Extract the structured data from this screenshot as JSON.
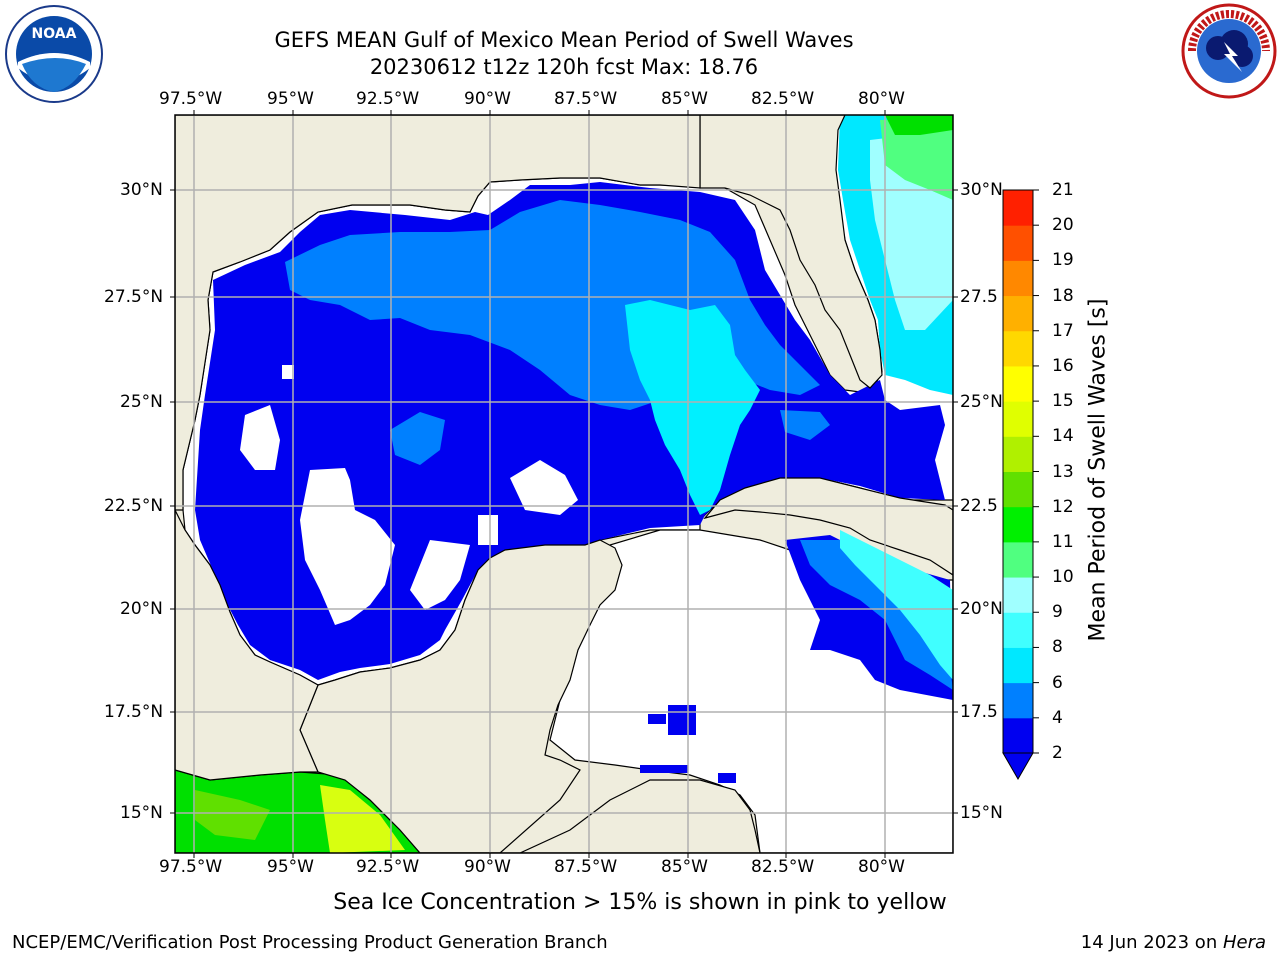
{
  "header": {
    "title_line1": "GEFS MEAN Gulf of Mexico Mean Period of Swell Waves",
    "title_line2": "20230612 t12z 120h fcst   Max: 18.76"
  },
  "logos": {
    "left": "NOAA",
    "right_ring": "NATIONAL WEATHER SERVICE"
  },
  "map": {
    "lon_labels": [
      "97.5°W",
      "95°W",
      "92.5°W",
      "90°W",
      "87.5°W",
      "85°W",
      "82.5°W",
      "80°W"
    ],
    "lat_labels_left": [
      "30°N",
      "27.5°N",
      "25°N",
      "22.5°N",
      "20°N",
      "17.5°N",
      "15°N"
    ],
    "lat_labels_right": [
      "30°N",
      "27.5",
      "25°N",
      "22.5",
      "20°N",
      "17.5",
      "15°N"
    ],
    "colors": {
      "land": "#efeddd",
      "ocean_blank": "#ffffff",
      "grid": "#b0b0b0"
    }
  },
  "colorbar": {
    "label": "Mean Period of Swell Waves [s]",
    "ticks": [
      "2",
      "4",
      "6",
      "8",
      "9",
      "10",
      "11",
      "12",
      "13",
      "14",
      "15",
      "16",
      "17",
      "18",
      "19",
      "20",
      "21"
    ],
    "colors": [
      "#0000f0",
      "#0080ff",
      "#00e8ff",
      "#40ffff",
      "#a0ffff",
      "#50ff80",
      "#00f000",
      "#60e000",
      "#b0f000",
      "#e0ff00",
      "#ffff00",
      "#ffd800",
      "#ffb000",
      "#ff8800",
      "#ff5000",
      "#ff2000"
    ]
  },
  "note": "Sea Ice Concentration > 15% is shown in pink to yellow",
  "footer": {
    "left": "NCEP/EMC/Verification Post Processing Product Generation Branch",
    "right_date": "14 Jun 2023 on ",
    "right_host": "Hera"
  }
}
